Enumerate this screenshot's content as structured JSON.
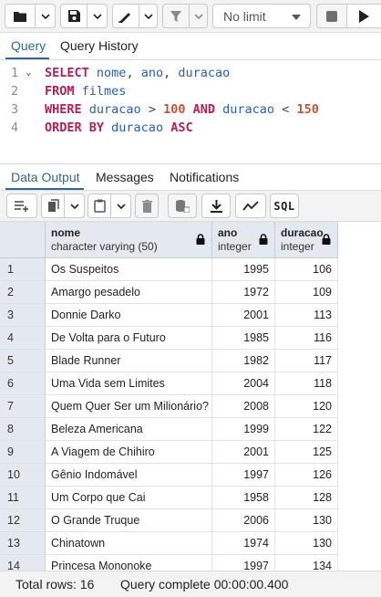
{
  "toolbar": {
    "limit_value": "No limit"
  },
  "query_tabs": [
    {
      "label": "Query",
      "active": true
    },
    {
      "label": "Query History",
      "active": false
    }
  ],
  "editor": {
    "line_numbers": [
      "1",
      "2",
      "3",
      "4"
    ],
    "lines": [
      [
        {
          "t": "kw",
          "v": "SELECT"
        },
        {
          "t": "sp",
          "v": " "
        },
        {
          "t": "id",
          "v": "nome"
        },
        {
          "t": "op",
          "v": ", "
        },
        {
          "t": "id",
          "v": "ano"
        },
        {
          "t": "op",
          "v": ", "
        },
        {
          "t": "id",
          "v": "duracao"
        }
      ],
      [
        {
          "t": "kw",
          "v": "FROM"
        },
        {
          "t": "sp",
          "v": " "
        },
        {
          "t": "id",
          "v": "filmes"
        }
      ],
      [
        {
          "t": "kw",
          "v": "WHERE"
        },
        {
          "t": "sp",
          "v": " "
        },
        {
          "t": "id",
          "v": "duracao"
        },
        {
          "t": "op",
          "v": " > "
        },
        {
          "t": "num",
          "v": "100"
        },
        {
          "t": "sp",
          "v": " "
        },
        {
          "t": "kw",
          "v": "AND"
        },
        {
          "t": "sp",
          "v": " "
        },
        {
          "t": "id",
          "v": "duracao"
        },
        {
          "t": "op",
          "v": " < "
        },
        {
          "t": "num",
          "v": "150"
        }
      ],
      [
        {
          "t": "kw",
          "v": "ORDER BY"
        },
        {
          "t": "sp",
          "v": " "
        },
        {
          "t": "id",
          "v": "duracao"
        },
        {
          "t": "sp",
          "v": " "
        },
        {
          "t": "kw",
          "v": "ASC"
        }
      ]
    ]
  },
  "output_tabs": [
    {
      "label": "Data Output",
      "active": true
    },
    {
      "label": "Messages",
      "active": false
    },
    {
      "label": "Notifications",
      "active": false
    }
  ],
  "grid_toolbar": {
    "sql_label": "SQL"
  },
  "columns": [
    {
      "name": "nome",
      "type": "character varying (50)"
    },
    {
      "name": "ano",
      "type": "integer"
    },
    {
      "name": "duracao",
      "type": "integer"
    }
  ],
  "rows": [
    {
      "n": "1",
      "nome": "Os Suspeitos",
      "ano": "1995",
      "duracao": "106"
    },
    {
      "n": "2",
      "nome": "Amargo pesadelo",
      "ano": "1972",
      "duracao": "109"
    },
    {
      "n": "3",
      "nome": "Donnie Darko",
      "ano": "2001",
      "duracao": "113"
    },
    {
      "n": "4",
      "nome": "De Volta para o Futuro",
      "ano": "1985",
      "duracao": "116"
    },
    {
      "n": "5",
      "nome": "Blade Runner",
      "ano": "1982",
      "duracao": "117"
    },
    {
      "n": "6",
      "nome": "Uma Vida sem Limites",
      "ano": "2004",
      "duracao": "118"
    },
    {
      "n": "7",
      "nome": "Quem Quer Ser um Milionário?",
      "ano": "2008",
      "duracao": "120"
    },
    {
      "n": "8",
      "nome": "Beleza Americana",
      "ano": "1999",
      "duracao": "122"
    },
    {
      "n": "9",
      "nome": "A Viagem de Chihiro",
      "ano": "2001",
      "duracao": "125"
    },
    {
      "n": "10",
      "nome": "Gênio Indomável",
      "ano": "1997",
      "duracao": "126"
    },
    {
      "n": "11",
      "nome": "Um Corpo que Cai",
      "ano": "1958",
      "duracao": "128"
    },
    {
      "n": "12",
      "nome": "O Grande Truque",
      "ano": "2006",
      "duracao": "130"
    },
    {
      "n": "13",
      "nome": "Chinatown",
      "ano": "1974",
      "duracao": "130"
    },
    {
      "n": "14",
      "nome": "Princesa Mononoke",
      "ano": "1997",
      "duracao": "134"
    }
  ],
  "status": {
    "total_rows": "Total rows: 16",
    "query_complete": "Query complete 00:00:00.400"
  },
  "colors": {
    "accent": "#326690",
    "keyword": "#b41f55",
    "identifier": "#2b5eb8",
    "number": "#c6532f"
  }
}
